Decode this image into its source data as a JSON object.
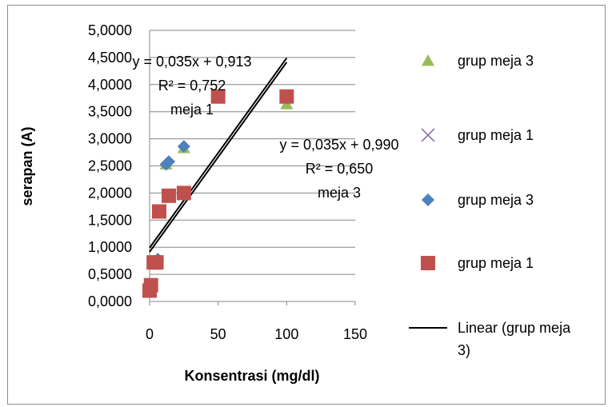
{
  "chart_data": {
    "type": "scatter",
    "xlabel": "Konsentrasi (mg/dl)",
    "ylabel": "serapan (A)",
    "xlim": [
      0,
      150
    ],
    "ylim": [
      0,
      5
    ],
    "x_ticks": [
      "0",
      "50",
      "100",
      "150"
    ],
    "y_ticks": [
      "0,0000",
      "0,5000",
      "1,0000",
      "1,5000",
      "2,0000",
      "2,5000",
      "3,0000",
      "3,5000",
      "4,0000",
      "4,5000",
      "5,0000"
    ],
    "grid": "horizontal",
    "legend_placement": "right",
    "series": [
      {
        "name": "grup meja 3",
        "marker": "triangle",
        "color": "#9bbb59",
        "points": [
          [
            0,
            0.2
          ],
          [
            3,
            0.72
          ],
          [
            6,
            0.75
          ],
          [
            12,
            2.53
          ],
          [
            25,
            2.83
          ],
          [
            100,
            3.64
          ]
        ]
      },
      {
        "name": "grup meja 1",
        "marker": "x",
        "color": "#8064a2",
        "points": []
      },
      {
        "name": "grup meja 3",
        "marker": "diamond",
        "color": "#4f81bd",
        "points": [
          [
            0,
            0.22
          ],
          [
            3,
            0.72
          ],
          [
            6,
            0.78
          ],
          [
            12,
            2.53
          ],
          [
            14,
            2.58
          ],
          [
            25,
            2.86
          ]
        ]
      },
      {
        "name": "grup meja 1",
        "marker": "square",
        "color": "#c0504d",
        "points": [
          [
            0,
            0.2
          ],
          [
            1,
            0.3
          ],
          [
            3,
            0.72
          ],
          [
            5,
            0.72
          ],
          [
            7,
            1.66
          ],
          [
            14,
            1.95
          ],
          [
            25,
            2.0
          ],
          [
            50,
            3.78
          ],
          [
            100,
            3.78
          ]
        ]
      }
    ],
    "trendlines": [
      {
        "name": "Linear (grup meja 3)",
        "slope": 0.035,
        "intercept": 0.99,
        "from": 0,
        "to": 100
      },
      {
        "slope": 0.035,
        "intercept": 0.913,
        "from": 0,
        "to": 100
      }
    ],
    "annotations": [
      {
        "lines": [
          "y = 0,035x + 0,913",
          "R² = 0,752",
          "meja 1"
        ]
      },
      {
        "lines": [
          "y = 0,035x + 0,990",
          "R² = 0,650",
          "meja 3"
        ]
      }
    ],
    "legend": [
      {
        "label": "grup meja 3",
        "marker": "triangle",
        "color": "#9bbb59"
      },
      {
        "label": "grup meja 1",
        "marker": "x",
        "color": "#8064a2"
      },
      {
        "label": "grup meja 3",
        "marker": "diamond",
        "color": "#4f81bd"
      },
      {
        "label": "grup meja 1",
        "marker": "square",
        "color": "#c0504d"
      },
      {
        "label_lines": [
          "Linear (grup meja",
          "3)"
        ],
        "marker": "line",
        "color": "#000000"
      }
    ]
  }
}
